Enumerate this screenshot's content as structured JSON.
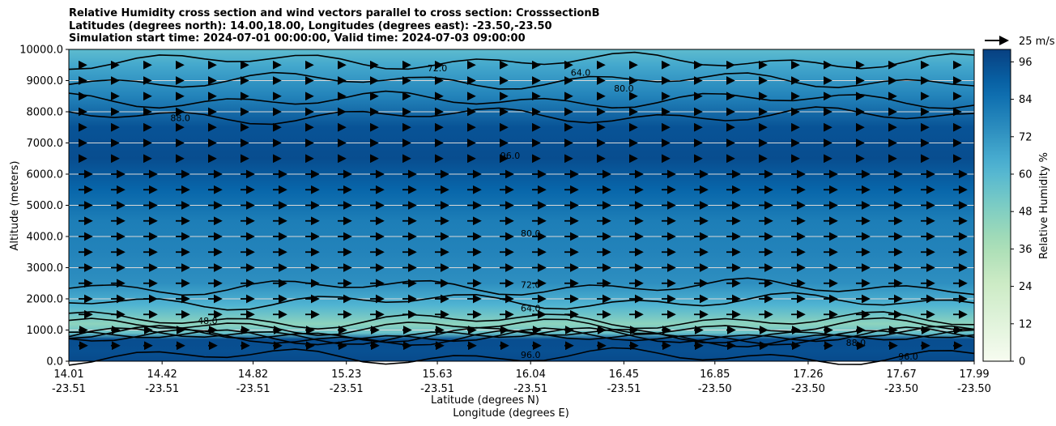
{
  "chart_data": {
    "type": "heatmap",
    "title_lines": [
      "Relative Humidity cross section and wind vectors parallel to cross section: CrosssectionB",
      "Latitudes (degrees north): 14.00,18.00, Longitudes (degrees east): -23.50,-23.50",
      "Simulation start time: 2024-07-01 00:00:00, Valid time: 2024-07-03 09:00:00"
    ],
    "xlabel_lat": "Latitude (degrees N)",
    "xlabel_lon": "Longitude (degrees E)",
    "ylabel": "Altitude (meters)",
    "ylim": [
      0,
      10000
    ],
    "yticks": [
      "0.0",
      "1000.0",
      "2000.0",
      "3000.0",
      "4000.0",
      "5000.0",
      "6000.0",
      "7000.0",
      "8000.0",
      "9000.0",
      "10000.0"
    ],
    "xticks": [
      {
        "lat": "14.01",
        "lon": "-23.51"
      },
      {
        "lat": "14.42",
        "lon": "-23.51"
      },
      {
        "lat": "14.82",
        "lon": "-23.51"
      },
      {
        "lat": "15.23",
        "lon": "-23.51"
      },
      {
        "lat": "15.63",
        "lon": "-23.51"
      },
      {
        "lat": "16.04",
        "lon": "-23.51"
      },
      {
        "lat": "16.45",
        "lon": "-23.51"
      },
      {
        "lat": "16.85",
        "lon": "-23.50"
      },
      {
        "lat": "17.26",
        "lon": "-23.50"
      },
      {
        "lat": "17.67",
        "lon": "-23.50"
      },
      {
        "lat": "17.99",
        "lon": "-23.50"
      }
    ],
    "colorbar": {
      "label": "Relative Humidity %",
      "ticks": [
        "0",
        "12",
        "24",
        "36",
        "48",
        "60",
        "72",
        "84",
        "96"
      ],
      "range": [
        0,
        100
      ],
      "colormap": "GnBu"
    },
    "quiver_key": "25 m/s",
    "horizontal_gridlines": true,
    "rh_profile": [
      {
        "alt": 0,
        "rh": 97
      },
      {
        "alt": 300,
        "rh": 95
      },
      {
        "alt": 700,
        "rh": 96
      },
      {
        "alt": 900,
        "rh": 55
      },
      {
        "alt": 1200,
        "rh": 45
      },
      {
        "alt": 1800,
        "rh": 62
      },
      {
        "alt": 2500,
        "rh": 74
      },
      {
        "alt": 3500,
        "rh": 78
      },
      {
        "alt": 4500,
        "rh": 80
      },
      {
        "alt": 5500,
        "rh": 88
      },
      {
        "alt": 6500,
        "rh": 96
      },
      {
        "alt": 7500,
        "rh": 94
      },
      {
        "alt": 8500,
        "rh": 78
      },
      {
        "alt": 9500,
        "rh": 66
      },
      {
        "alt": 10000,
        "rh": 58
      }
    ],
    "contour_labels": [
      {
        "text": "48.0",
        "lat": 14.62,
        "alt": 1200
      },
      {
        "text": "64.0",
        "lat": 16.04,
        "alt": 1600
      },
      {
        "text": "72.0",
        "lat": 16.04,
        "alt": 2350
      },
      {
        "text": "80.0",
        "lat": 16.04,
        "alt": 4000
      },
      {
        "text": "96.0",
        "lat": 15.95,
        "alt": 6500
      },
      {
        "text": "88.0",
        "lat": 14.5,
        "alt": 7700
      },
      {
        "text": "80.0",
        "lat": 16.45,
        "alt": 8650
      },
      {
        "text": "72.0",
        "lat": 15.63,
        "alt": 9300
      },
      {
        "text": "64.0",
        "lat": 16.26,
        "alt": 9150
      },
      {
        "text": "96.0",
        "lat": 16.04,
        "alt": 100
      },
      {
        "text": "88.0",
        "lat": 17.47,
        "alt": 500
      },
      {
        "text": "96.0",
        "lat": 17.7,
        "alt": 50
      }
    ]
  }
}
